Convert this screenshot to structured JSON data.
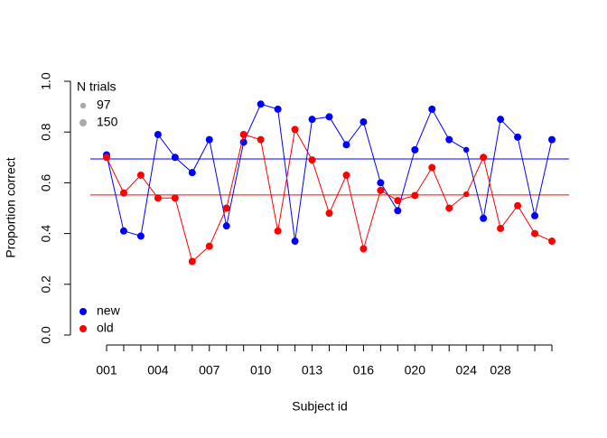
{
  "chart_data": {
    "type": "line",
    "xlabel": "Subject id",
    "ylabel": "Proportion correct",
    "categories": [
      "001",
      null,
      null,
      "004",
      null,
      null,
      "007",
      null,
      null,
      "010",
      null,
      null,
      "013",
      null,
      null,
      "016",
      null,
      null,
      "020",
      null,
      null,
      "024",
      null,
      "028",
      null,
      null,
      null
    ],
    "series": [
      {
        "name": "new",
        "color": "#0000ff",
        "values": [
          0.71,
          0.41,
          0.39,
          0.79,
          0.7,
          0.64,
          0.77,
          0.43,
          0.76,
          0.91,
          0.89,
          0.37,
          0.85,
          0.86,
          0.75,
          0.84,
          0.6,
          0.49,
          0.73,
          0.89,
          0.77,
          0.73,
          0.46,
          0.85,
          0.78,
          0.47,
          0.77
        ]
      },
      {
        "name": "old",
        "color": "#ff0000",
        "values": [
          0.7,
          0.56,
          0.63,
          0.54,
          0.54,
          0.29,
          0.35,
          0.5,
          0.79,
          0.77,
          0.41,
          0.81,
          0.69,
          0.48,
          0.63,
          0.34,
          0.57,
          0.53,
          0.55,
          0.66,
          0.5,
          0.555,
          0.7,
          0.42,
          0.51,
          0.4,
          0.37
        ]
      }
    ],
    "n_trials": [
      150,
      150,
      150,
      150,
      150,
      150,
      150,
      150,
      150,
      150,
      150,
      150,
      150,
      150,
      150,
      150,
      150,
      150,
      150,
      150,
      150,
      97,
      150,
      150,
      150,
      150,
      150
    ],
    "size_legend": {
      "title": "N trials",
      "values": [
        97,
        150
      ],
      "color": "#aaaaaa"
    },
    "hlines": [
      {
        "value": 0.694,
        "color": "#0000ff"
      },
      {
        "value": 0.552,
        "color": "#ff0000"
      }
    ],
    "ylim": [
      0,
      1
    ],
    "yticks": [
      {
        "value": 0,
        "label": "0.0"
      },
      0.2,
      0.4,
      0.6,
      0.8,
      {
        "value": 1,
        "label": "1.0"
      }
    ],
    "legend": "bottomleft"
  }
}
